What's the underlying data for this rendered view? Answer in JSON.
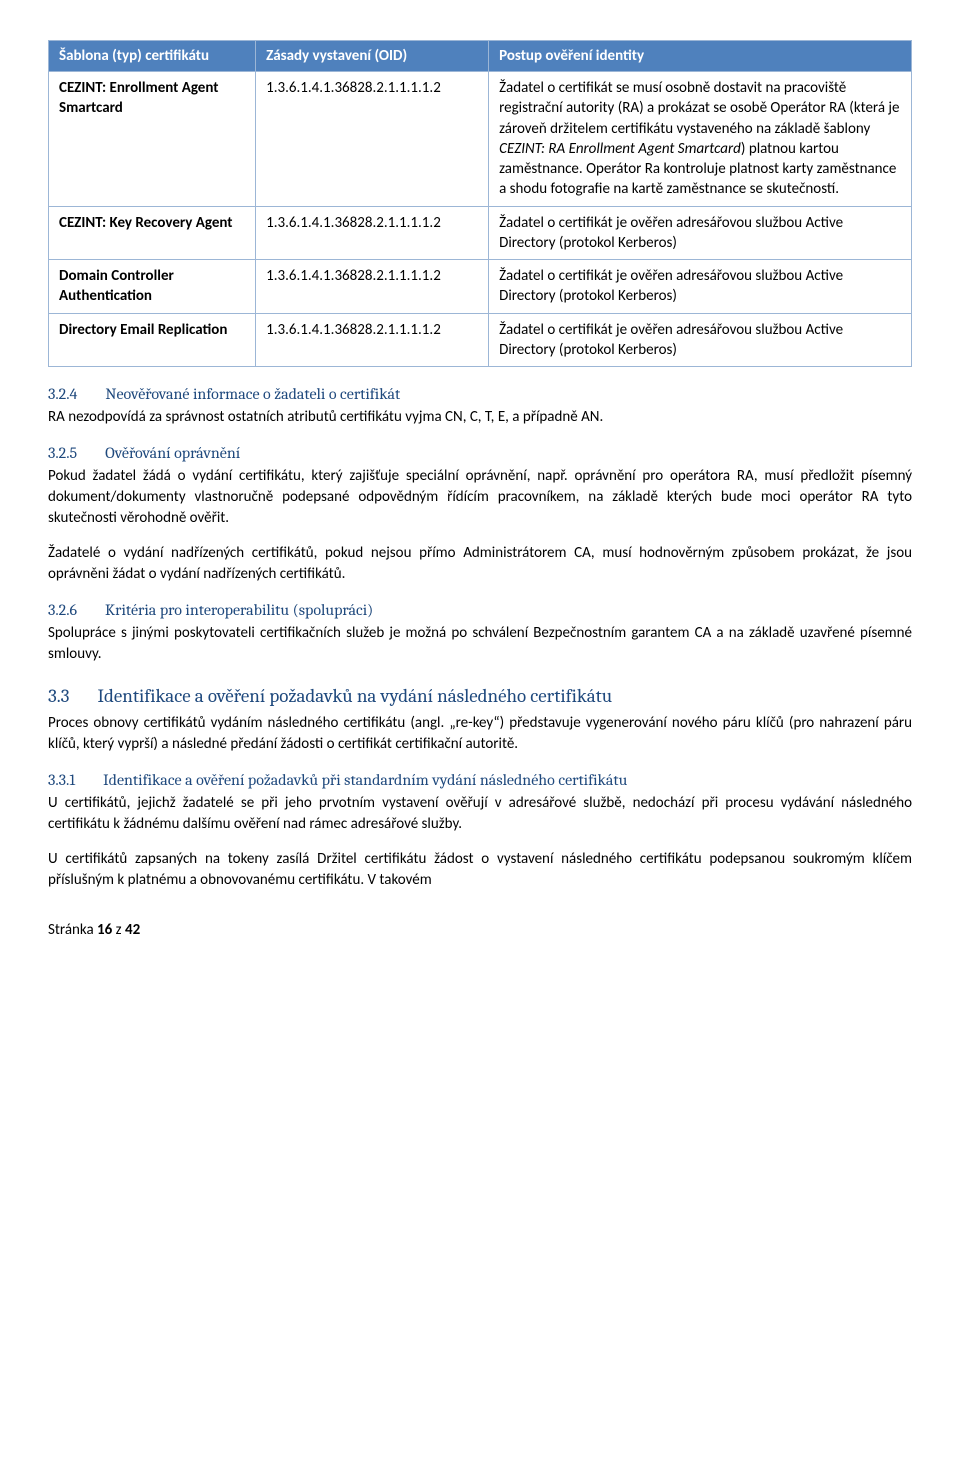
{
  "table": {
    "headers": [
      "Šablona (typ) certifikátu",
      "Zásady vystavení (OID)",
      "Postup ověření identity"
    ],
    "rows": [
      {
        "template": "CEZINT: Enrollment Agent Smartcard",
        "oid": "1.3.6.1.4.1.36828.2.1.1.1.1.2",
        "desc_pre": "Žadatel o certifikát se musí osobně dostavit na pracoviště registrační autority (RA) a prokázat se osobě Operátor RA (která je zároveň držitelem certifikátu vystaveného na základě šablony ",
        "desc_italic": "CEZINT: RA Enrollment Agent Smartcard",
        "desc_post": ") platnou kartou zaměstnance. Operátor Ra kontroluje platnost karty zaměstnance a shodu fotografie na kartě zaměstnance se skutečností."
      },
      {
        "template": "CEZINT: Key Recovery Agent",
        "oid": "1.3.6.1.4.1.36828.2.1.1.1.1.2",
        "desc": "Žadatel o certifikát je ověřen adresářovou službou Active Directory (protokol Kerberos)"
      },
      {
        "template": "Domain Controller Authentication",
        "oid": "1.3.6.1.4.1.36828.2.1.1.1.1.2",
        "desc": "Žadatel o certifikát je ověřen adresářovou službou Active Directory (protokol Kerberos)"
      },
      {
        "template": "Directory Email Replication",
        "oid": "1.3.6.1.4.1.36828.2.1.1.1.1.2",
        "desc": "Žadatel o certifikát je ověřen adresářovou službou Active Directory (protokol Kerberos)"
      }
    ]
  },
  "sections": {
    "s324": {
      "num": "3.2.4",
      "title": "Neověřované informace o žadateli o certifikát",
      "p1": "RA nezodpovídá za správnost ostatních atributů certifikátu vyjma CN, C, T, E, a případně AN."
    },
    "s325": {
      "num": "3.2.5",
      "title": "Ověřování oprávnění",
      "p1": "Pokud žadatel žádá o vydání certifikátu, který zajišťuje speciální oprávnění, např. oprávnění pro operátora RA, musí předložit písemný dokument/dokumenty vlastnoručně podepsané odpovědným řídícím pracovníkem, na základě kterých bude moci operátor RA tyto skutečnosti věrohodně ověřit.",
      "p2": "Žadatelé o vydání nadřízených certifikátů, pokud nejsou přímo Administrátorem CA, musí hodnověrným způsobem prokázat, že jsou oprávněni žádat o vydání nadřízených certifikátů."
    },
    "s326": {
      "num": "3.2.6",
      "title": "Kritéria pro interoperabilitu (spolupráci)",
      "p1": "Spolupráce s jinými poskytovateli certifikačních služeb je možná po schválení Bezpečnostním garantem CA a na základě uzavřené písemné smlouvy."
    },
    "s33": {
      "num": "3.3",
      "title": "Identifikace a ověření požadavků na vydání následného certifikátu",
      "p1": "Proces obnovy certifikátů vydáním následného certifikátu (angl. „re-key“) představuje vygenerování nového páru klíčů (pro nahrazení páru klíčů, který vyprší) a následné předání žádosti o certifikát certifikační autoritě."
    },
    "s331": {
      "num": "3.3.1",
      "title": "Identifikace a ověření požadavků při standardním vydání následného certifikátu",
      "p1": "U certifikátů, jejichž žadatelé se při jeho prvotním vystavení ověřují v adresářové službě, nedochází při procesu vydávání následného certifikátu k žádnému dalšímu ověření nad rámec adresářové služby.",
      "p2": "U certifikátů zapsaných na tokeny zasílá Držitel certifikátu žádost o vystavení následného certifikátu podepsanou soukromým klíčem příslušným k platnému a obnovovanému certifikátu. V takovém"
    }
  },
  "footer": {
    "pre": "Stránka ",
    "page": "16",
    "mid": " z ",
    "total": "42"
  }
}
